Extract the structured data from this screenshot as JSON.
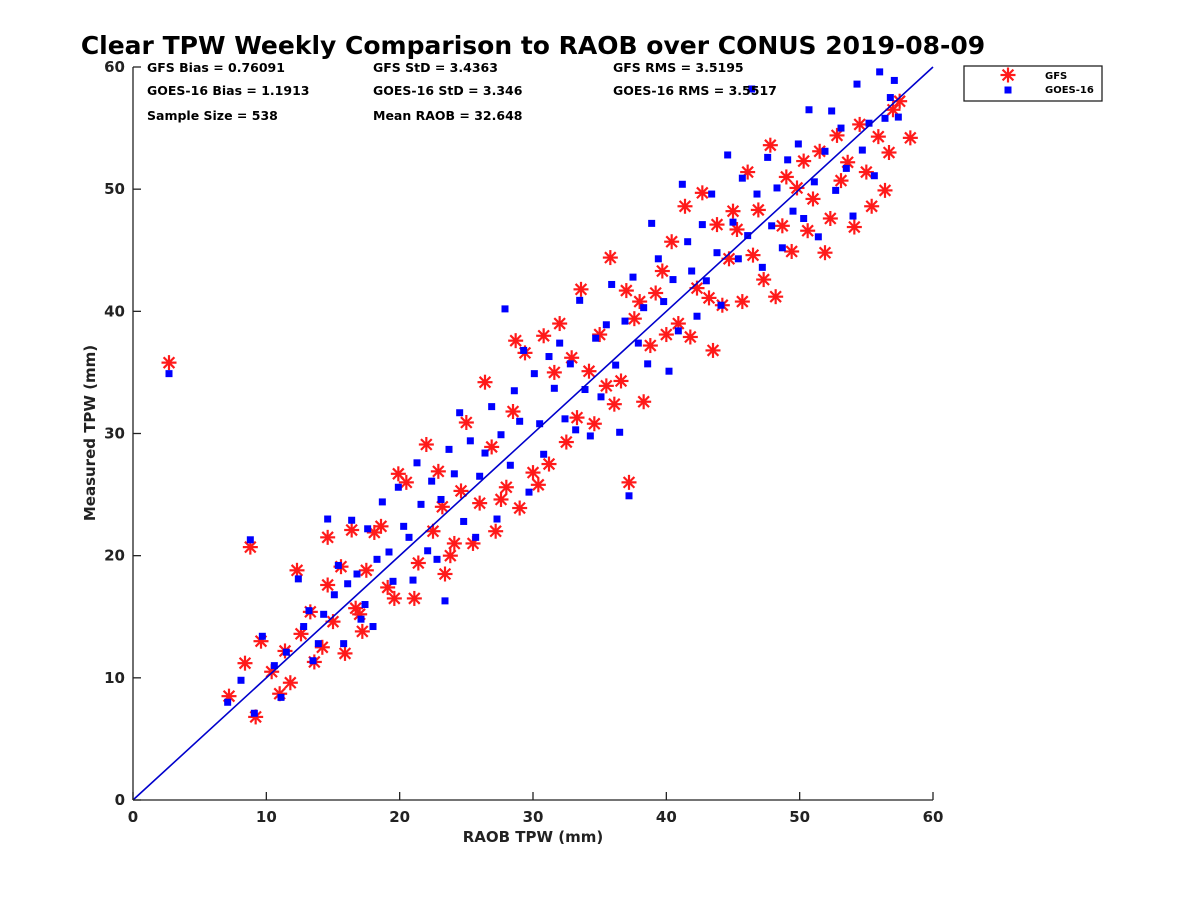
{
  "chart_data": {
    "type": "scatter",
    "title": "Clear TPW Weekly Comparison to RAOB over CONUS 2019-08-09",
    "xlabel": "RAOB TPW (mm)",
    "ylabel": "Measured TPW (mm)",
    "xlim": [
      0,
      60
    ],
    "ylim": [
      0,
      60
    ],
    "xticks": [
      "0",
      "10",
      "20",
      "30",
      "40",
      "50",
      "60"
    ],
    "yticks": [
      "0",
      "10",
      "20",
      "30",
      "40",
      "50",
      "60"
    ],
    "grid": false,
    "legend_position": "outside-top-right",
    "reference_line": {
      "from": [
        0,
        0
      ],
      "to": [
        60,
        60
      ],
      "color": "#0000cc"
    },
    "stats": [
      "GFS Bias = 0.76091",
      "GFS StD = 3.4363",
      "GFS RMS = 3.5195",
      "GOES-16 Bias = 1.1913",
      "GOES-16 StD = 3.346",
      "GOES-16 RMS = 3.5517",
      "Sample Size = 538",
      "Mean RAOB = 32.648"
    ],
    "series": [
      {
        "name": "GFS",
        "marker": "asterisk",
        "color": "#ff1a1a",
        "points": [
          [
            2.7,
            35.8
          ],
          [
            7.2,
            8.5
          ],
          [
            8.4,
            11.2
          ],
          [
            8.8,
            20.7
          ],
          [
            9.2,
            6.8
          ],
          [
            9.6,
            13.0
          ],
          [
            10.4,
            10.5
          ],
          [
            11.0,
            8.7
          ],
          [
            11.4,
            12.2
          ],
          [
            11.8,
            9.6
          ],
          [
            12.3,
            18.8
          ],
          [
            12.6,
            13.6
          ],
          [
            13.3,
            15.4
          ],
          [
            13.6,
            11.3
          ],
          [
            14.2,
            12.5
          ],
          [
            14.6,
            17.6
          ],
          [
            14.6,
            21.5
          ],
          [
            15.0,
            14.6
          ],
          [
            15.6,
            19.1
          ],
          [
            15.9,
            12.0
          ],
          [
            16.4,
            22.1
          ],
          [
            16.7,
            15.7
          ],
          [
            17.0,
            15.2
          ],
          [
            17.2,
            13.8
          ],
          [
            17.5,
            18.8
          ],
          [
            18.1,
            21.9
          ],
          [
            18.6,
            22.4
          ],
          [
            19.1,
            17.4
          ],
          [
            19.6,
            16.5
          ],
          [
            19.9,
            26.7
          ],
          [
            20.5,
            26.0
          ],
          [
            21.1,
            16.5
          ],
          [
            21.4,
            19.4
          ],
          [
            22.0,
            29.1
          ],
          [
            22.5,
            22.0
          ],
          [
            22.9,
            26.9
          ],
          [
            23.2,
            24.0
          ],
          [
            23.4,
            18.5
          ],
          [
            23.8,
            20.0
          ],
          [
            24.1,
            21.0
          ],
          [
            24.6,
            25.3
          ],
          [
            25.0,
            30.9
          ],
          [
            25.5,
            21.0
          ],
          [
            26.0,
            24.3
          ],
          [
            26.4,
            34.2
          ],
          [
            26.9,
            28.9
          ],
          [
            27.2,
            22.0
          ],
          [
            27.6,
            24.6
          ],
          [
            28.0,
            25.6
          ],
          [
            28.5,
            31.8
          ],
          [
            28.7,
            37.6
          ],
          [
            29.0,
            23.9
          ],
          [
            29.4,
            36.6
          ],
          [
            30.0,
            26.8
          ],
          [
            30.4,
            25.8
          ],
          [
            30.8,
            38.0
          ],
          [
            31.2,
            27.5
          ],
          [
            31.6,
            35.0
          ],
          [
            32.0,
            39.0
          ],
          [
            32.5,
            29.3
          ],
          [
            32.9,
            36.2
          ],
          [
            33.3,
            31.3
          ],
          [
            33.6,
            41.8
          ],
          [
            34.2,
            35.1
          ],
          [
            34.6,
            30.8
          ],
          [
            35.0,
            38.1
          ],
          [
            35.5,
            33.9
          ],
          [
            35.8,
            44.4
          ],
          [
            36.1,
            32.4
          ],
          [
            36.6,
            34.3
          ],
          [
            37.0,
            41.7
          ],
          [
            37.2,
            26.0
          ],
          [
            37.6,
            39.4
          ],
          [
            38.0,
            40.8
          ],
          [
            38.3,
            32.6
          ],
          [
            38.8,
            37.2
          ],
          [
            39.2,
            41.5
          ],
          [
            39.7,
            43.3
          ],
          [
            40.0,
            38.1
          ],
          [
            40.4,
            45.7
          ],
          [
            40.9,
            39.0
          ],
          [
            41.4,
            48.6
          ],
          [
            41.8,
            37.9
          ],
          [
            42.3,
            41.9
          ],
          [
            42.7,
            49.7
          ],
          [
            43.2,
            41.1
          ],
          [
            43.5,
            36.8
          ],
          [
            43.8,
            47.1
          ],
          [
            44.2,
            40.5
          ],
          [
            44.7,
            44.3
          ],
          [
            45.0,
            48.2
          ],
          [
            45.3,
            46.7
          ],
          [
            45.7,
            40.8
          ],
          [
            46.1,
            51.4
          ],
          [
            46.5,
            44.6
          ],
          [
            46.9,
            48.3
          ],
          [
            47.3,
            42.6
          ],
          [
            47.8,
            53.6
          ],
          [
            48.2,
            41.2
          ],
          [
            48.7,
            47.0
          ],
          [
            49.0,
            51.0
          ],
          [
            49.4,
            44.9
          ],
          [
            49.8,
            50.1
          ],
          [
            50.3,
            52.3
          ],
          [
            50.6,
            46.6
          ],
          [
            51.0,
            49.2
          ],
          [
            51.5,
            53.1
          ],
          [
            51.9,
            44.8
          ],
          [
            52.3,
            47.6
          ],
          [
            52.8,
            54.4
          ],
          [
            53.1,
            50.7
          ],
          [
            53.6,
            52.2
          ],
          [
            54.1,
            46.9
          ],
          [
            54.5,
            55.3
          ],
          [
            55.0,
            51.4
          ],
          [
            55.4,
            48.6
          ],
          [
            55.9,
            54.3
          ],
          [
            56.4,
            49.9
          ],
          [
            56.7,
            53.0
          ],
          [
            57.0,
            56.5
          ],
          [
            57.5,
            57.2
          ],
          [
            58.3,
            54.2
          ]
        ]
      },
      {
        "name": "GOES-16",
        "marker": "square",
        "color": "#0000ff",
        "points": [
          [
            2.7,
            34.9
          ],
          [
            7.1,
            8.0
          ],
          [
            8.1,
            9.8
          ],
          [
            8.8,
            21.3
          ],
          [
            9.1,
            7.1
          ],
          [
            9.7,
            13.4
          ],
          [
            10.6,
            11.0
          ],
          [
            11.1,
            8.4
          ],
          [
            11.5,
            12.1
          ],
          [
            12.4,
            18.1
          ],
          [
            12.8,
            14.2
          ],
          [
            13.2,
            15.5
          ],
          [
            13.5,
            11.4
          ],
          [
            13.9,
            12.8
          ],
          [
            14.3,
            15.2
          ],
          [
            14.6,
            23.0
          ],
          [
            15.1,
            16.8
          ],
          [
            15.4,
            19.2
          ],
          [
            15.8,
            12.8
          ],
          [
            16.1,
            17.7
          ],
          [
            16.4,
            22.9
          ],
          [
            16.8,
            18.5
          ],
          [
            17.1,
            14.8
          ],
          [
            17.4,
            16.0
          ],
          [
            17.6,
            22.2
          ],
          [
            18.0,
            14.2
          ],
          [
            18.3,
            19.7
          ],
          [
            18.7,
            24.4
          ],
          [
            19.2,
            20.3
          ],
          [
            19.5,
            17.9
          ],
          [
            19.9,
            25.6
          ],
          [
            20.3,
            22.4
          ],
          [
            20.7,
            21.5
          ],
          [
            21.0,
            18.0
          ],
          [
            21.3,
            27.6
          ],
          [
            21.6,
            24.2
          ],
          [
            22.1,
            20.4
          ],
          [
            22.4,
            26.1
          ],
          [
            22.8,
            19.7
          ],
          [
            23.1,
            24.6
          ],
          [
            23.4,
            16.3
          ],
          [
            23.7,
            28.7
          ],
          [
            24.1,
            26.7
          ],
          [
            24.5,
            31.7
          ],
          [
            24.8,
            22.8
          ],
          [
            25.3,
            29.4
          ],
          [
            25.7,
            21.5
          ],
          [
            26.0,
            26.5
          ],
          [
            26.4,
            28.4
          ],
          [
            26.9,
            32.2
          ],
          [
            27.3,
            23.0
          ],
          [
            27.6,
            29.9
          ],
          [
            27.9,
            40.2
          ],
          [
            28.3,
            27.4
          ],
          [
            28.6,
            33.5
          ],
          [
            29.0,
            31.0
          ],
          [
            29.3,
            36.8
          ],
          [
            29.7,
            25.2
          ],
          [
            30.1,
            34.9
          ],
          [
            30.5,
            30.8
          ],
          [
            30.8,
            28.3
          ],
          [
            31.2,
            36.3
          ],
          [
            31.6,
            33.7
          ],
          [
            32.0,
            37.4
          ],
          [
            32.4,
            31.2
          ],
          [
            32.8,
            35.7
          ],
          [
            33.2,
            30.3
          ],
          [
            33.5,
            40.9
          ],
          [
            33.9,
            33.6
          ],
          [
            34.3,
            29.8
          ],
          [
            34.7,
            37.8
          ],
          [
            35.1,
            33.0
          ],
          [
            35.5,
            38.9
          ],
          [
            35.9,
            42.2
          ],
          [
            36.2,
            35.6
          ],
          [
            36.5,
            30.1
          ],
          [
            36.9,
            39.2
          ],
          [
            37.2,
            24.9
          ],
          [
            37.5,
            42.8
          ],
          [
            37.9,
            37.4
          ],
          [
            38.3,
            40.3
          ],
          [
            38.6,
            35.7
          ],
          [
            38.9,
            47.2
          ],
          [
            39.4,
            44.3
          ],
          [
            39.8,
            40.8
          ],
          [
            40.2,
            35.1
          ],
          [
            40.5,
            42.6
          ],
          [
            40.9,
            38.4
          ],
          [
            41.2,
            50.4
          ],
          [
            41.6,
            45.7
          ],
          [
            41.9,
            43.3
          ],
          [
            42.3,
            39.6
          ],
          [
            42.7,
            47.1
          ],
          [
            43.0,
            42.5
          ],
          [
            43.4,
            49.6
          ],
          [
            43.8,
            44.8
          ],
          [
            44.1,
            40.5
          ],
          [
            44.6,
            52.8
          ],
          [
            45.0,
            47.3
          ],
          [
            45.4,
            44.3
          ],
          [
            45.7,
            50.9
          ],
          [
            46.1,
            46.2
          ],
          [
            46.4,
            58.2
          ],
          [
            46.8,
            49.6
          ],
          [
            47.2,
            43.6
          ],
          [
            47.6,
            52.6
          ],
          [
            47.9,
            47.0
          ],
          [
            48.3,
            50.1
          ],
          [
            48.7,
            45.2
          ],
          [
            49.1,
            52.4
          ],
          [
            49.5,
            48.2
          ],
          [
            49.9,
            53.7
          ],
          [
            50.3,
            47.6
          ],
          [
            50.7,
            56.5
          ],
          [
            51.1,
            50.6
          ],
          [
            51.4,
            46.1
          ],
          [
            51.9,
            53.1
          ],
          [
            52.4,
            56.4
          ],
          [
            52.7,
            49.9
          ],
          [
            53.1,
            55.0
          ],
          [
            53.5,
            51.7
          ],
          [
            54.0,
            47.8
          ],
          [
            54.3,
            58.6
          ],
          [
            54.7,
            53.2
          ],
          [
            55.2,
            55.4
          ],
          [
            55.6,
            51.1
          ],
          [
            56.0,
            59.6
          ],
          [
            56.4,
            55.8
          ],
          [
            56.8,
            57.5
          ],
          [
            57.1,
            58.9
          ],
          [
            57.4,
            55.9
          ]
        ]
      }
    ]
  }
}
